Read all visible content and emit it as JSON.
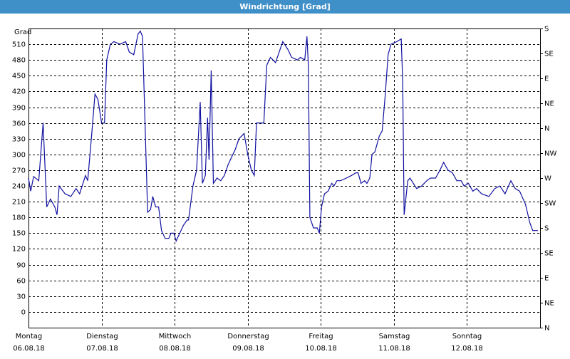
{
  "chart_data": {
    "type": "line",
    "title": "Windrichtung [Grad]",
    "ylabel": "Grad",
    "color": "#1010a0",
    "grid": true,
    "xlim": [
      0,
      7
    ],
    "ylim": [
      -30,
      540
    ],
    "y2lim": [
      0,
      540
    ],
    "xticks": [
      {
        "value": 0,
        "label": "Montag",
        "date": "06.08.18"
      },
      {
        "value": 1,
        "label": "Dienstag",
        "date": "07.08.18"
      },
      {
        "value": 2,
        "label": "Mittwoch",
        "date": "08.08.18"
      },
      {
        "value": 3,
        "label": "Donnerstag",
        "date": "09.08.18"
      },
      {
        "value": 4,
        "label": "Freitag",
        "date": "10.08.18"
      },
      {
        "value": 5,
        "label": "Samstag",
        "date": "11.08.18"
      },
      {
        "value": 6,
        "label": "Sonntag",
        "date": "12.08.18"
      }
    ],
    "yticks": [
      0,
      30,
      60,
      90,
      120,
      150,
      180,
      210,
      240,
      270,
      300,
      330,
      360,
      390,
      420,
      450,
      480,
      510
    ],
    "y2ticks": [
      {
        "value": 0,
        "label": "N"
      },
      {
        "value": 45,
        "label": "NE"
      },
      {
        "value": 90,
        "label": "E"
      },
      {
        "value": 135,
        "label": "SE"
      },
      {
        "value": 180,
        "label": "S"
      },
      {
        "value": 225,
        "label": "SW"
      },
      {
        "value": 270,
        "label": "W"
      },
      {
        "value": 315,
        "label": "NW"
      },
      {
        "value": 360,
        "label": "N"
      },
      {
        "value": 405,
        "label": "NE"
      },
      {
        "value": 450,
        "label": "E"
      },
      {
        "value": 495,
        "label": "SE"
      },
      {
        "value": 540,
        "label": "S"
      }
    ],
    "x": [
      0.0,
      0.03,
      0.07,
      0.14,
      0.2,
      0.25,
      0.3,
      0.36,
      0.39,
      0.42,
      0.5,
      0.58,
      0.65,
      0.7,
      0.78,
      0.81,
      0.86,
      0.91,
      0.95,
      1.0,
      1.04,
      1.07,
      1.12,
      1.17,
      1.25,
      1.33,
      1.38,
      1.44,
      1.5,
      1.53,
      1.56,
      1.63,
      1.67,
      1.7,
      1.74,
      1.78,
      1.82,
      1.87,
      1.92,
      1.95,
      1.99,
      2.02,
      2.07,
      2.12,
      2.17,
      2.19,
      2.25,
      2.3,
      2.35,
      2.38,
      2.42,
      2.45,
      2.47,
      2.5,
      2.53,
      2.58,
      2.63,
      2.68,
      2.73,
      2.78,
      2.83,
      2.88,
      2.95,
      3.0,
      3.05,
      3.09,
      3.12,
      3.22,
      3.26,
      3.31,
      3.38,
      3.48,
      3.55,
      3.6,
      3.68,
      3.72,
      3.78,
      3.81,
      3.83,
      3.85,
      3.9,
      3.95,
      3.98,
      4.01,
      4.05,
      4.1,
      4.15,
      4.18,
      4.22,
      4.27,
      4.35,
      4.42,
      4.48,
      4.51,
      4.55,
      4.6,
      4.63,
      4.67,
      4.7,
      4.74,
      4.8,
      4.84,
      4.88,
      4.92,
      4.96,
      5.04,
      5.1,
      5.12,
      5.14,
      5.19,
      5.22,
      5.31,
      5.38,
      5.45,
      5.5,
      5.57,
      5.63,
      5.68,
      5.74,
      5.8,
      5.86,
      5.92,
      5.96,
      6.02,
      6.08,
      6.13,
      6.2,
      6.3,
      6.38,
      6.45,
      6.52,
      6.6,
      6.66,
      6.72,
      6.8,
      6.86,
      6.9,
      6.97
    ],
    "values": [
      255,
      230,
      258,
      250,
      360,
      200,
      215,
      200,
      185,
      240,
      225,
      220,
      235,
      225,
      260,
      250,
      330,
      415,
      405,
      360,
      360,
      480,
      510,
      515,
      510,
      515,
      495,
      490,
      530,
      535,
      525,
      190,
      195,
      220,
      200,
      200,
      155,
      140,
      140,
      150,
      150,
      135,
      150,
      165,
      175,
      175,
      240,
      270,
      400,
      245,
      260,
      370,
      290,
      460,
      245,
      255,
      250,
      260,
      280,
      295,
      310,
      330,
      340,
      300,
      270,
      260,
      360,
      360,
      470,
      485,
      475,
      515,
      500,
      485,
      480,
      485,
      480,
      525,
      470,
      180,
      160,
      160,
      150,
      200,
      225,
      230,
      245,
      240,
      250,
      250,
      255,
      260,
      265,
      265,
      245,
      250,
      245,
      255,
      300,
      305,
      335,
      345,
      410,
      490,
      510,
      515,
      520,
      440,
      185,
      250,
      255,
      235,
      240,
      250,
      255,
      255,
      270,
      285,
      270,
      265,
      250,
      250,
      240,
      245,
      230,
      235,
      225,
      220,
      235,
      240,
      225,
      250,
      235,
      230,
      205,
      170,
      155,
      155
    ]
  }
}
